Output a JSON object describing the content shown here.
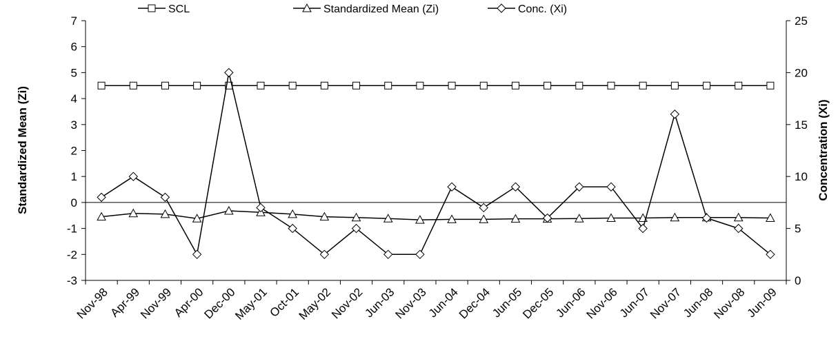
{
  "chart_data": {
    "type": "line",
    "categories": [
      "Nov-98",
      "Apr-99",
      "Nov-99",
      "Apr-00",
      "Dec-00",
      "May-01",
      "Oct-01",
      "May-02",
      "Nov-02",
      "Jun-03",
      "Nov-03",
      "Jun-04",
      "Dec-04",
      "Jun-05",
      "Dec-05",
      "Jun-06",
      "Nov-06",
      "Jun-07",
      "Nov-07",
      "Jun-08",
      "Nov-08",
      "Jun-09"
    ],
    "ylabel": "Standardized Mean (Zi)",
    "y2label": "Concentration (Xi)",
    "ylim": [
      -3,
      7
    ],
    "y2lim": [
      0,
      25
    ],
    "yticks": [
      "-3",
      "-2",
      "-1",
      "0",
      "1",
      "2",
      "3",
      "4",
      "5",
      "6",
      "7"
    ],
    "y2ticks": [
      "0",
      "5",
      "10",
      "15",
      "20",
      "25"
    ],
    "grid": false,
    "legend_position": "top",
    "series": [
      {
        "name": "SCL",
        "axis": "left",
        "marker": "square",
        "values": [
          4.5,
          4.5,
          4.5,
          4.5,
          4.5,
          4.5,
          4.5,
          4.5,
          4.5,
          4.5,
          4.5,
          4.5,
          4.5,
          4.5,
          4.5,
          4.5,
          4.5,
          4.5,
          4.5,
          4.5,
          4.5,
          4.5
        ]
      },
      {
        "name": "Standardized Mean (Zi)",
        "axis": "left",
        "marker": "triangle",
        "values": [
          -0.55,
          -0.42,
          -0.45,
          -0.62,
          -0.32,
          -0.38,
          -0.45,
          -0.55,
          -0.58,
          -0.62,
          -0.67,
          -0.65,
          -0.65,
          -0.63,
          -0.63,
          -0.62,
          -0.6,
          -0.6,
          -0.58,
          -0.58,
          -0.58,
          -0.6
        ]
      },
      {
        "name": "Conc. (Xi)",
        "axis": "right",
        "marker": "diamond",
        "values": [
          8,
          10,
          8,
          2.5,
          20,
          7,
          5,
          2.5,
          5,
          2.5,
          2.5,
          9,
          7,
          9,
          6,
          9,
          9,
          5,
          16,
          6,
          5,
          2.5
        ]
      }
    ]
  }
}
